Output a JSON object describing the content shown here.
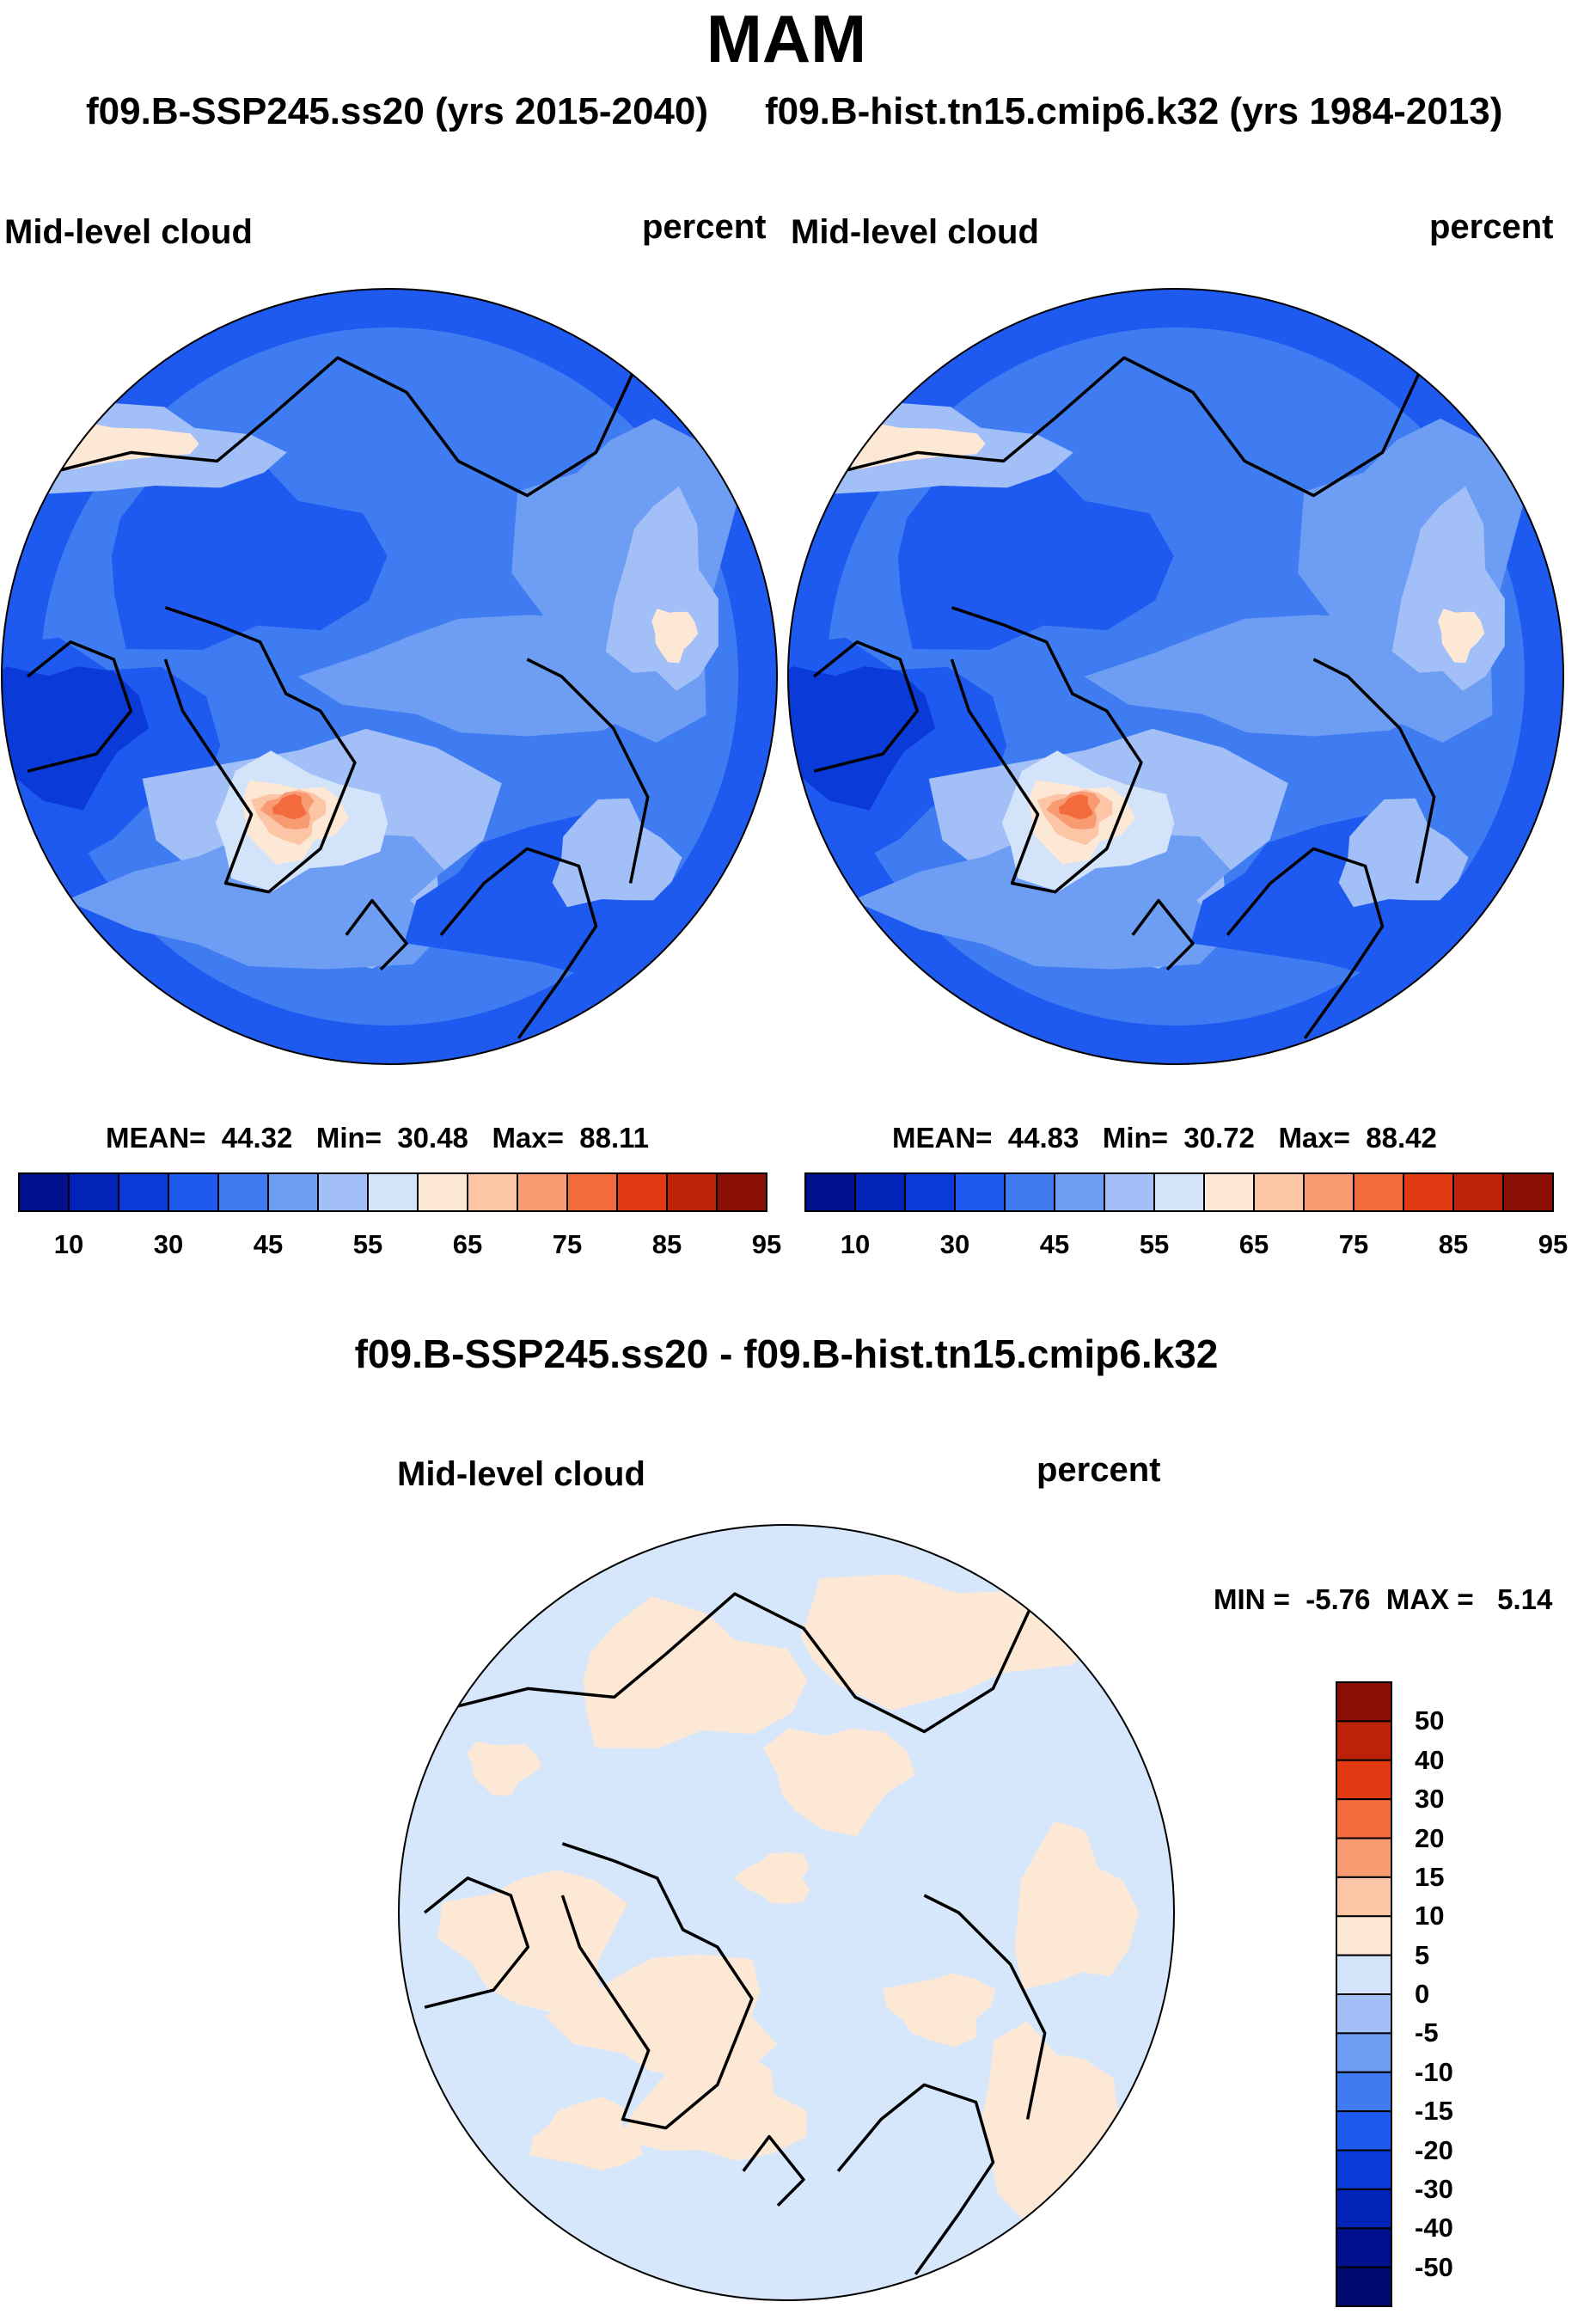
{
  "season": "MAM",
  "header": {
    "left_case": "f09.B-SSP245.ss20 (yrs 2015-2040)",
    "right_case": "f09.B-hist.tn15.cmip6.k32 (yrs 1984-2013)"
  },
  "panels": [
    {
      "variable": "Mid-level cloud",
      "units": "percent",
      "stats": {
        "mean_label": "MEAN=",
        "mean": "44.32",
        "min_label": "Min=",
        "min": "30.48",
        "max_label": "Max=",
        "max": "88.11"
      }
    },
    {
      "variable": "Mid-level cloud",
      "units": "percent",
      "stats": {
        "mean_label": "MEAN=",
        "mean": "44.83",
        "min_label": "Min=",
        "min": "30.72",
        "max_label": "Max=",
        "max": "88.42"
      }
    }
  ],
  "abs_colorbar": {
    "colors": [
      "#00108c",
      "#0323b8",
      "#0a3ad8",
      "#1f5af0",
      "#3f7cf2",
      "#6e9ef4",
      "#a2c0f7",
      "#d3e3fa",
      "#fde8d6",
      "#fcc5a6",
      "#f99b72",
      "#f36a3c",
      "#e23b14",
      "#bb2208",
      "#8a0f04"
    ],
    "labels": [
      "10",
      "30",
      "45",
      "55",
      "65",
      "75",
      "85",
      "95"
    ]
  },
  "diff": {
    "title": "f09.B-SSP245.ss20 - f09.B-hist.tn15.cmip6.k32",
    "variable": "Mid-level cloud",
    "units": "percent",
    "min_label": "MIN =",
    "min": "-5.76",
    "max_label": "MAX =",
    "max": "5.14",
    "colorbar": {
      "colors_top_to_bottom": [
        "#8a0f04",
        "#bb2208",
        "#e23b14",
        "#f36a3c",
        "#f99b72",
        "#fcc5a6",
        "#fde8d6",
        "#d3e3fa",
        "#a2c0f7",
        "#6e9ef4",
        "#3f7cf2",
        "#1f5af0",
        "#0a3ad8",
        "#0323b8",
        "#00108c",
        "#000a6e"
      ],
      "labels_top_to_bottom": [
        "50",
        "40",
        "30",
        "20",
        "15",
        "10",
        "5",
        "0",
        "-5",
        "-10",
        "-15",
        "-20",
        "-30",
        "-40",
        "-50"
      ]
    }
  },
  "map_colors": {
    "deep": "#1f5af0",
    "darker": "#0a3ad8",
    "mid": "#3f7cf2",
    "light": "#6e9ef4",
    "pale": "#a2c0f7",
    "palest": "#d3e3fa",
    "peach": "#fde8d6",
    "salmon": "#fcc5a6",
    "orange": "#f99b72",
    "red": "#f36a3c",
    "darkred": "#e23b14",
    "diff_neg": "#d6e7fb",
    "diff_pos": "#fde8d6"
  }
}
